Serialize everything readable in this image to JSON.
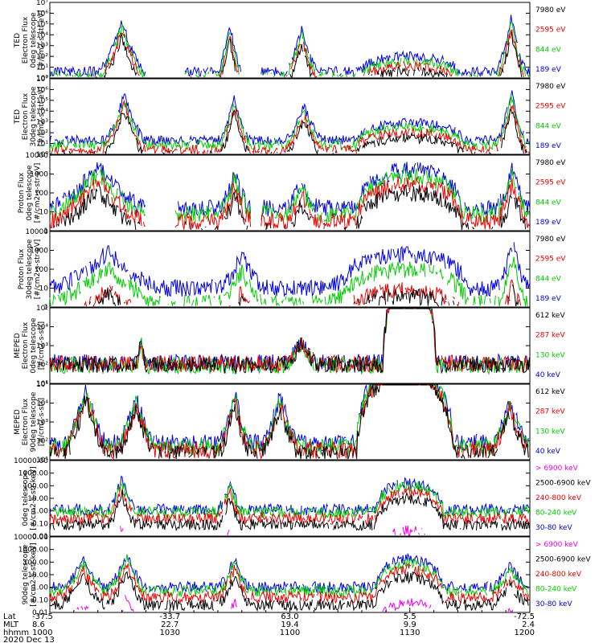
{
  "chart_data": [
    {
      "type": "line",
      "title": "",
      "ylabel": [
        "TED",
        "Electron Flux",
        "0deg telescope",
        "[#/cm2-s-str-eV]"
      ],
      "yscale": "log",
      "ylim": [
        1,
        10000000
      ],
      "yticks": [
        "10⁰",
        "10¹",
        "10²",
        "10³",
        "10⁴",
        "10⁵",
        "10⁶",
        "10⁷"
      ],
      "bursts": [
        [
          0.1,
          0.2,
          5.2
        ],
        [
          0.35,
          0.4,
          5.0
        ],
        [
          0.49,
          0.56,
          4.6
        ],
        [
          0.93,
          0.995,
          5.6
        ]
      ],
      "hump": [
        0.75,
        0.1,
        1.4
      ],
      "floor": 0.6,
      "gaps": [
        [
          0.2,
          0.28
        ],
        [
          0.4,
          0.44
        ]
      ],
      "series": [
        {
          "name": "7980 eV",
          "color": "#000000",
          "offset": -1.4
        },
        {
          "name": "2595 eV",
          "color": "#ee0000",
          "offset": -0.9
        },
        {
          "name": "844 eV",
          "color": "#00cc00",
          "offset": -0.45
        },
        {
          "name": "189 eV",
          "color": "#0000dd",
          "offset": 0
        }
      ]
    },
    {
      "type": "line",
      "title": "",
      "ylabel": [
        "TED",
        "Electron Flux",
        "30deg telescope",
        "[#/cm2-s-str-eV]"
      ],
      "yscale": "log",
      "ylim": [
        1,
        10000000
      ],
      "yticks": [
        "10⁰",
        "10¹",
        "10²",
        "10³",
        "10⁴",
        "10⁵",
        "10⁶",
        "10⁷"
      ],
      "bursts": [
        [
          0.11,
          0.2,
          5.5
        ],
        [
          0.35,
          0.42,
          5.2
        ],
        [
          0.49,
          0.57,
          4.6
        ],
        [
          0.93,
          0.995,
          5.8
        ]
      ],
      "hump": [
        0.75,
        0.11,
        1.6
      ],
      "floor": 1.3,
      "gaps": [],
      "series": [
        {
          "name": "7980 eV",
          "color": "#000000",
          "offset": -1.4
        },
        {
          "name": "2595 eV",
          "color": "#ee0000",
          "offset": -0.9
        },
        {
          "name": "844 eV",
          "color": "#00cc00",
          "offset": -0.45
        },
        {
          "name": "189 eV",
          "color": "#0000dd",
          "offset": 0
        }
      ]
    },
    {
      "type": "line",
      "title": "",
      "ylabel": [
        "Proton Flux",
        "0deg telescope",
        "[#/cm2-s-str-eV]"
      ],
      "yscale": "log",
      "ylim": [
        1,
        10000
      ],
      "yticks": [
        "1",
        "10",
        "100",
        "1000",
        "10000"
      ],
      "bursts": [
        [
          0.0,
          0.2,
          3.4
        ],
        [
          0.35,
          0.42,
          3.0
        ],
        [
          0.49,
          0.56,
          2.6
        ],
        [
          0.93,
          1.0,
          3.3
        ]
      ],
      "hump": [
        0.75,
        0.11,
        2.0
      ],
      "floor": 1.2,
      "gaps": [
        [
          0.2,
          0.26
        ],
        [
          0.42,
          0.44
        ]
      ],
      "series": [
        {
          "name": "7980 eV",
          "color": "#000000",
          "offset": -1.2
        },
        {
          "name": "2595 eV",
          "color": "#ee0000",
          "offset": -0.7
        },
        {
          "name": "844 eV",
          "color": "#00cc00",
          "offset": -0.3
        },
        {
          "name": "189 eV",
          "color": "#0000dd",
          "offset": 0
        }
      ]
    },
    {
      "type": "line",
      "title": "",
      "ylabel": [
        "Proton Flux",
        "30deg telescope",
        "[#/cm2-s-str-eV]"
      ],
      "yscale": "log",
      "ylim": [
        1,
        10000
      ],
      "yticks": [
        "1",
        "10",
        "100",
        "1000",
        "10000"
      ],
      "bursts": [
        [
          0.0,
          0.24,
          2.9
        ],
        [
          0.35,
          0.45,
          2.7
        ],
        [
          0.58,
          0.7,
          2.3
        ],
        [
          0.93,
          1.0,
          3.3
        ]
      ],
      "hump": [
        0.74,
        0.13,
        1.8
      ],
      "floor": 1.0,
      "gaps": [],
      "series": [
        {
          "name": "7980 eV",
          "color": "#000000",
          "offset": -2.2
        },
        {
          "name": "2595 eV",
          "color": "#ee0000",
          "offset": -1.9
        },
        {
          "name": "844 eV",
          "color": "#00cc00",
          "offset": -0.8
        },
        {
          "name": "189 eV",
          "color": "#0000dd",
          "offset": 0
        }
      ]
    },
    {
      "type": "line",
      "title": "",
      "ylabel": [
        "MEPED",
        "Electron Flux",
        "0deg telescope",
        "[#/cm2-s-str]"
      ],
      "yscale": "log",
      "ylim": [
        10,
        100000
      ],
      "yticks": [
        "10¹",
        "10²",
        "10³",
        "10⁴",
        "10⁵"
      ],
      "bursts": [
        [
          0.18,
          0.2,
          3.5
        ],
        [
          0.49,
          0.56,
          3.3
        ]
      ],
      "hump": [
        0.75,
        0.055,
        4.9
      ],
      "floor": 2.1,
      "gaps": [],
      "series": [
        {
          "name": "612 keV",
          "color": "#000000",
          "offset": -0.1
        },
        {
          "name": "287 keV",
          "color": "#ee0000",
          "offset": -0.05
        },
        {
          "name": "130 keV",
          "color": "#00cc00",
          "offset": -0.15
        },
        {
          "name": "40 keV",
          "color": "#0000dd",
          "offset": 0
        }
      ]
    },
    {
      "type": "line",
      "title": "",
      "ylabel": [
        "MEPED",
        "Electron Flux",
        "90deg telescope",
        "[#/cm2-s-str]"
      ],
      "yscale": "log",
      "ylim": [
        10,
        100000
      ],
      "yticks": [
        "10¹",
        "10²",
        "10³",
        "10⁴",
        "10⁵"
      ],
      "bursts": [
        [
          0.03,
          0.12,
          4.8
        ],
        [
          0.14,
          0.22,
          4.3
        ],
        [
          0.35,
          0.42,
          4.5
        ],
        [
          0.44,
          0.52,
          4.4
        ],
        [
          0.92,
          1.0,
          4.2
        ]
      ],
      "hump": [
        0.74,
        0.1,
        4.4
      ],
      "floor": 1.9,
      "gaps": [],
      "series": [
        {
          "name": "612 keV",
          "color": "#000000",
          "offset": -0.6
        },
        {
          "name": "287 keV",
          "color": "#ee0000",
          "offset": -0.4
        },
        {
          "name": "130 keV",
          "color": "#00cc00",
          "offset": -0.2
        },
        {
          "name": "40 keV",
          "color": "#0000dd",
          "offset": 0
        }
      ]
    },
    {
      "type": "line",
      "title": "",
      "ylabel": [
        "0deg telescope",
        "[#/cm2-s-str-keV]"
      ],
      "yscale": "log",
      "ylim": [
        0.01,
        10000
      ],
      "yticks": [
        "0.01",
        "0.10",
        "1.00",
        "10.00",
        "100.00",
        "1000.00",
        "10000.00"
      ],
      "bursts": [
        [
          0.12,
          0.18,
          2.6
        ],
        [
          0.35,
          0.4,
          2.3
        ]
      ],
      "hump": [
        0.75,
        0.07,
        2.1
      ],
      "floor": 0.1,
      "gaps": [],
      "series": [
        {
          "name": "> 6900 keV",
          "color": "#ee00ee",
          "offset": -3.8
        },
        {
          "name": "2500-6900 keV",
          "color": "#000000",
          "offset": -1.2
        },
        {
          "name": "240-800 keV",
          "color": "#ee0000",
          "offset": -0.7
        },
        {
          "name": "80-240 keV",
          "color": "#00cc00",
          "offset": -0.2
        },
        {
          "name": "30-80 keV",
          "color": "#0000dd",
          "offset": 0
        }
      ]
    },
    {
      "type": "line",
      "title": "",
      "ylabel": [
        "90deg telescope",
        "[#/cm2-s-str-keV]"
      ],
      "yscale": "log",
      "ylim": [
        0.01,
        10000
      ],
      "yticks": [
        "0.01",
        "0.10",
        "1.00",
        "10.00",
        "100.00",
        "1000.00",
        "10000.00"
      ],
      "bursts": [
        [
          0.02,
          0.12,
          2.1
        ],
        [
          0.12,
          0.2,
          2.7
        ],
        [
          0.35,
          0.42,
          2.2
        ],
        [
          0.92,
          1.0,
          1.7
        ]
      ],
      "hump": [
        0.75,
        0.07,
        2.2
      ],
      "floor": 0.0,
      "gaps": [],
      "series": [
        {
          "name": "> 6900 keV",
          "color": "#ee00ee",
          "offset": -3.4
        },
        {
          "name": "2500-6900 keV",
          "color": "#000000",
          "offset": -1.4
        },
        {
          "name": "240-800 keV",
          "color": "#ee0000",
          "offset": -0.8
        },
        {
          "name": "80-240 keV",
          "color": "#00cc00",
          "offset": -0.3
        },
        {
          "name": "30-80 keV",
          "color": "#0000dd",
          "offset": 0
        }
      ]
    }
  ],
  "x_axis": {
    "row_labels": [
      "Lat",
      "MLT",
      "hhmm"
    ],
    "date": "2020 Dec 13",
    "ticks": [
      {
        "pos": 0.0,
        "lat": "-37.5",
        "mlt": "8.6",
        "hhmm": "1000"
      },
      {
        "pos": 0.25,
        "lat": "-33.7",
        "mlt": "22.7",
        "hhmm": "1030"
      },
      {
        "pos": 0.5,
        "lat": "63.0",
        "mlt": "19.4",
        "hhmm": "1100"
      },
      {
        "pos": 0.75,
        "lat": "5.5",
        "mlt": "9.9",
        "hhmm": "1130"
      },
      {
        "pos": 1.0,
        "lat": "-72.5",
        "mlt": "2.4",
        "hhmm": "1200"
      }
    ]
  }
}
